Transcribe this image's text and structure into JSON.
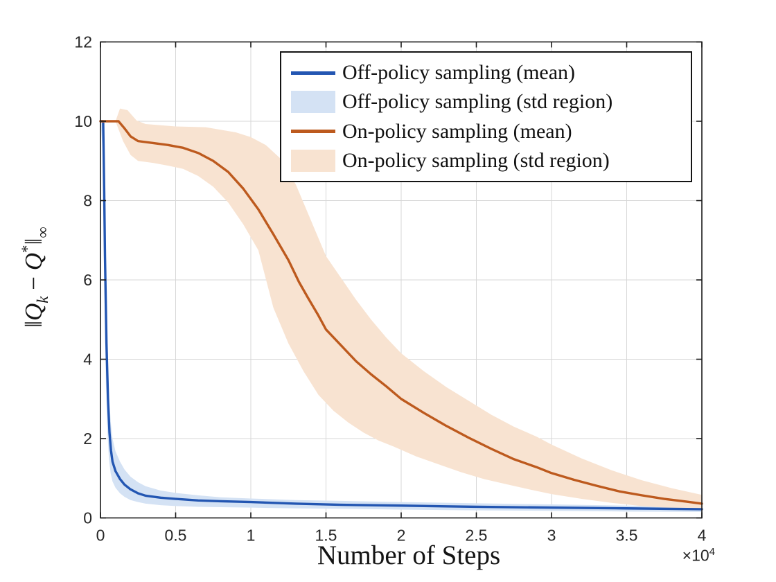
{
  "colors": {
    "blue_line": "#2356b2",
    "blue_fill": "#d4e2f4",
    "orange_line": "#bd5a1e",
    "orange_fill": "#f8e3d1",
    "grid": "#d7d7d7",
    "axis": "#1a1a1a",
    "tick_text": "#262626",
    "label_text": "#141414"
  },
  "axes": {
    "xlabel": "Number of Steps",
    "exponent": {
      "base": "×10",
      "power": "4"
    },
    "ylabel_plain": "‖Qₖ − Q*‖∞",
    "ylabel_parts": [
      {
        "t": "‖",
        "style": "nrm"
      },
      {
        "t": "Q",
        "style": "it"
      },
      {
        "t": "k",
        "style": "sub"
      },
      {
        "t": " − ",
        "style": "nrm"
      },
      {
        "t": "Q",
        "style": "it"
      },
      {
        "t": "*",
        "style": "sup"
      },
      {
        "t": "‖",
        "style": "nrm"
      },
      {
        "t": "∞",
        "style": "subn"
      }
    ],
    "x_ticks": {
      "values": [
        0,
        0.5,
        1,
        1.5,
        2,
        2.5,
        3,
        3.5,
        4
      ],
      "labels": [
        "0",
        "0.5",
        "1",
        "1.5",
        "2",
        "2.5",
        "3",
        "3.5",
        "4"
      ]
    },
    "y_ticks": {
      "values": [
        0,
        2,
        4,
        6,
        8,
        10,
        12
      ],
      "labels": [
        "0",
        "2",
        "4",
        "6",
        "8",
        "10",
        "12"
      ]
    }
  },
  "legend": {
    "items": [
      {
        "label": "Off-policy sampling (mean)",
        "swatch": "line",
        "color": "#2356b2"
      },
      {
        "label": "Off-policy sampling (std region)",
        "swatch": "patch",
        "color": "#d4e2f4"
      },
      {
        "label": "On-policy sampling (mean)",
        "swatch": "line",
        "color": "#bd5a1e"
      },
      {
        "label": "On-policy sampling (std region)",
        "swatch": "patch",
        "color": "#f8e3d1"
      }
    ]
  },
  "chart_data": {
    "type": "line",
    "title": "",
    "xlabel": "Number of Steps",
    "ylabel": "||Q_k - Q*||_inf",
    "x_unit_multiplier": "1e4",
    "xlim": [
      0,
      4
    ],
    "ylim": [
      0,
      12
    ],
    "grid": true,
    "legend_position": "upper right",
    "series": [
      {
        "name": "Off-policy sampling (std region)",
        "type": "band",
        "color": "#d4e2f4",
        "upper": [
          [
            0,
            10
          ],
          [
            0.02,
            10
          ],
          [
            0.03,
            7.4
          ],
          [
            0.04,
            5.3
          ],
          [
            0.05,
            3.8
          ],
          [
            0.06,
            2.9
          ],
          [
            0.07,
            2.35
          ],
          [
            0.08,
            2.0
          ],
          [
            0.1,
            1.68
          ],
          [
            0.13,
            1.42
          ],
          [
            0.16,
            1.22
          ],
          [
            0.2,
            1.04
          ],
          [
            0.25,
            0.9
          ],
          [
            0.3,
            0.8
          ],
          [
            0.4,
            0.69
          ],
          [
            0.5,
            0.63
          ],
          [
            0.65,
            0.57
          ],
          [
            0.8,
            0.52
          ],
          [
            1.0,
            0.49
          ],
          [
            1.3,
            0.45
          ],
          [
            1.6,
            0.43
          ],
          [
            2.0,
            0.4
          ],
          [
            2.5,
            0.37
          ],
          [
            3.0,
            0.34
          ],
          [
            3.5,
            0.31
          ],
          [
            4.0,
            0.29
          ]
        ],
        "lower": [
          [
            0,
            10
          ],
          [
            0.016,
            9.2
          ],
          [
            0.022,
            7.0
          ],
          [
            0.028,
            5.2
          ],
          [
            0.036,
            3.4
          ],
          [
            0.046,
            2.2
          ],
          [
            0.056,
            1.5
          ],
          [
            0.068,
            1.12
          ],
          [
            0.08,
            0.92
          ],
          [
            0.1,
            0.76
          ],
          [
            0.13,
            0.62
          ],
          [
            0.16,
            0.53
          ],
          [
            0.2,
            0.45
          ],
          [
            0.25,
            0.4
          ],
          [
            0.3,
            0.36
          ],
          [
            0.4,
            0.32
          ],
          [
            0.5,
            0.3
          ],
          [
            0.65,
            0.28
          ],
          [
            0.8,
            0.27
          ],
          [
            1.0,
            0.26
          ],
          [
            1.3,
            0.24
          ],
          [
            1.6,
            0.23
          ],
          [
            2.0,
            0.21
          ],
          [
            2.5,
            0.19
          ],
          [
            3.0,
            0.18
          ],
          [
            3.5,
            0.16
          ],
          [
            4.0,
            0.15
          ]
        ]
      },
      {
        "name": "On-policy sampling (std region)",
        "type": "band",
        "color": "#f8e3d1",
        "upper": [
          [
            0.1,
            10
          ],
          [
            0.13,
            10.32
          ],
          [
            0.18,
            10.28
          ],
          [
            0.24,
            10.02
          ],
          [
            0.3,
            9.93
          ],
          [
            0.5,
            9.87
          ],
          [
            0.7,
            9.85
          ],
          [
            0.9,
            9.72
          ],
          [
            1.0,
            9.6
          ],
          [
            1.1,
            9.4
          ],
          [
            1.2,
            9.05
          ],
          [
            1.3,
            8.4
          ],
          [
            1.4,
            7.5
          ],
          [
            1.5,
            6.6
          ],
          [
            1.6,
            6.05
          ],
          [
            1.7,
            5.5
          ],
          [
            1.8,
            5.0
          ],
          [
            1.9,
            4.55
          ],
          [
            2.0,
            4.15
          ],
          [
            2.15,
            3.7
          ],
          [
            2.3,
            3.3
          ],
          [
            2.45,
            2.95
          ],
          [
            2.6,
            2.6
          ],
          [
            2.75,
            2.3
          ],
          [
            2.9,
            2.05
          ],
          [
            3.0,
            1.85
          ],
          [
            3.2,
            1.5
          ],
          [
            3.4,
            1.2
          ],
          [
            3.6,
            0.95
          ],
          [
            3.8,
            0.75
          ],
          [
            4.0,
            0.58
          ]
        ],
        "lower": [
          [
            0.1,
            10
          ],
          [
            0.15,
            9.5
          ],
          [
            0.2,
            9.15
          ],
          [
            0.25,
            9.0
          ],
          [
            0.35,
            8.95
          ],
          [
            0.45,
            8.88
          ],
          [
            0.55,
            8.8
          ],
          [
            0.65,
            8.62
          ],
          [
            0.75,
            8.35
          ],
          [
            0.85,
            7.95
          ],
          [
            0.95,
            7.4
          ],
          [
            1.05,
            6.75
          ],
          [
            1.15,
            5.3
          ],
          [
            1.25,
            4.4
          ],
          [
            1.35,
            3.7
          ],
          [
            1.45,
            3.1
          ],
          [
            1.55,
            2.7
          ],
          [
            1.65,
            2.4
          ],
          [
            1.75,
            2.15
          ],
          [
            1.85,
            1.95
          ],
          [
            1.95,
            1.8
          ],
          [
            2.1,
            1.55
          ],
          [
            2.25,
            1.35
          ],
          [
            2.4,
            1.15
          ],
          [
            2.55,
            0.98
          ],
          [
            2.7,
            0.85
          ],
          [
            2.85,
            0.72
          ],
          [
            3.0,
            0.6
          ],
          [
            3.2,
            0.48
          ],
          [
            3.4,
            0.38
          ],
          [
            3.6,
            0.3
          ],
          [
            3.8,
            0.25
          ],
          [
            4.0,
            0.21
          ]
        ]
      },
      {
        "name": "Off-policy sampling (mean)",
        "type": "line",
        "color": "#2356b2",
        "points": [
          [
            0,
            10
          ],
          [
            0.018,
            10
          ],
          [
            0.025,
            8.2
          ],
          [
            0.03,
            6.6
          ],
          [
            0.04,
            4.4
          ],
          [
            0.05,
            3.0
          ],
          [
            0.06,
            2.15
          ],
          [
            0.07,
            1.7
          ],
          [
            0.08,
            1.42
          ],
          [
            0.1,
            1.18
          ],
          [
            0.13,
            0.98
          ],
          [
            0.16,
            0.84
          ],
          [
            0.2,
            0.72
          ],
          [
            0.25,
            0.62
          ],
          [
            0.3,
            0.56
          ],
          [
            0.4,
            0.51
          ],
          [
            0.5,
            0.48
          ],
          [
            0.65,
            0.44
          ],
          [
            0.8,
            0.42
          ],
          [
            1.0,
            0.4
          ],
          [
            1.3,
            0.36
          ],
          [
            1.6,
            0.33
          ],
          [
            2.0,
            0.31
          ],
          [
            2.5,
            0.28
          ],
          [
            3.0,
            0.26
          ],
          [
            3.5,
            0.24
          ],
          [
            4.0,
            0.22
          ]
        ]
      },
      {
        "name": "On-policy sampling (mean)",
        "type": "line",
        "color": "#bd5a1e",
        "points": [
          [
            0,
            10
          ],
          [
            0.12,
            10
          ],
          [
            0.16,
            9.82
          ],
          [
            0.2,
            9.62
          ],
          [
            0.25,
            9.5
          ],
          [
            0.35,
            9.45
          ],
          [
            0.45,
            9.4
          ],
          [
            0.55,
            9.33
          ],
          [
            0.65,
            9.2
          ],
          [
            0.75,
            9.0
          ],
          [
            0.85,
            8.72
          ],
          [
            0.95,
            8.3
          ],
          [
            1.05,
            7.78
          ],
          [
            1.15,
            7.15
          ],
          [
            1.25,
            6.5
          ],
          [
            1.32,
            5.95
          ],
          [
            1.38,
            5.55
          ],
          [
            1.45,
            5.1
          ],
          [
            1.5,
            4.75
          ],
          [
            1.6,
            4.35
          ],
          [
            1.7,
            3.95
          ],
          [
            1.8,
            3.62
          ],
          [
            1.9,
            3.32
          ],
          [
            2.0,
            3.0
          ],
          [
            2.15,
            2.65
          ],
          [
            2.3,
            2.32
          ],
          [
            2.45,
            2.02
          ],
          [
            2.6,
            1.74
          ],
          [
            2.75,
            1.48
          ],
          [
            2.9,
            1.28
          ],
          [
            3.0,
            1.13
          ],
          [
            3.15,
            0.96
          ],
          [
            3.3,
            0.81
          ],
          [
            3.45,
            0.67
          ],
          [
            3.6,
            0.57
          ],
          [
            3.75,
            0.48
          ],
          [
            3.9,
            0.41
          ],
          [
            4.0,
            0.36
          ]
        ]
      }
    ]
  }
}
